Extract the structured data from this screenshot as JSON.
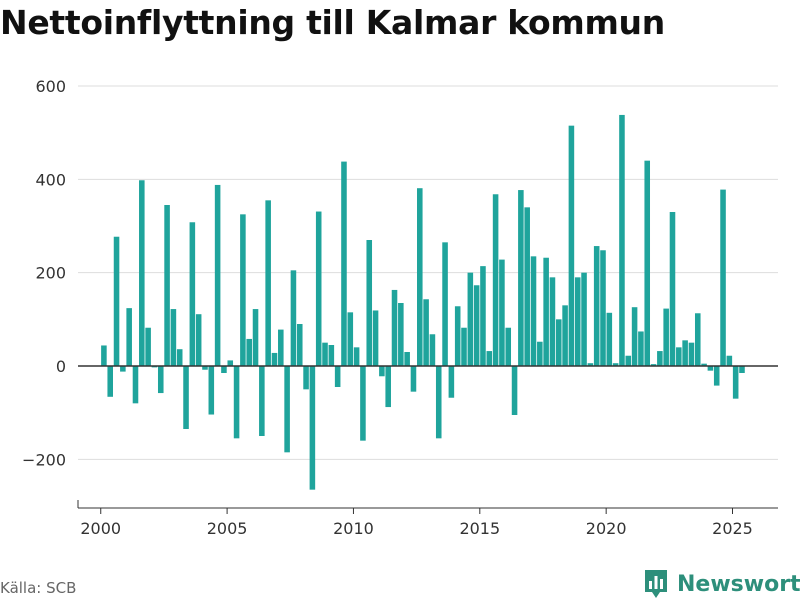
{
  "title": "Nettoinflyttning till Kalmar kommun",
  "source": "Källa: SCB",
  "brand": "Newsworthy",
  "colors": {
    "bar": "#1fa49c",
    "grid": "#dddddd",
    "zero": "#333333",
    "axis": "#333333",
    "text": "#333333",
    "brand": "#2d8f7b"
  },
  "chart_data": {
    "type": "bar",
    "title": "Nettoinflyttning till Kalmar kommun",
    "xlabel": "",
    "ylabel": "",
    "xlim": [
      1999.1,
      2026.8
    ],
    "ylim": [
      -300,
      600
    ],
    "yticks": [
      600,
      400,
      200,
      0,
      -200
    ],
    "ytick_labels": [
      "600",
      "400",
      "200",
      "0",
      "−200"
    ],
    "xticks": [
      2000,
      2005,
      2010,
      2015,
      2020,
      2025
    ],
    "xtick_labels": [
      "2000",
      "2005",
      "2010",
      "2015",
      "2020",
      "2025"
    ],
    "grid": true,
    "legend": "none",
    "bar_width_years": 0.22,
    "series": [
      {
        "x": [
          2000.125,
          2000.375,
          2000.625,
          2000.875,
          2001.125,
          2001.375,
          2001.625,
          2001.875,
          2002.125,
          2002.375,
          2002.625,
          2002.875,
          2003.125,
          2003.375,
          2003.625,
          2003.875,
          2004.125,
          2004.375,
          2004.625,
          2004.875,
          2005.125,
          2005.375,
          2005.625,
          2005.875,
          2006.125,
          2006.375,
          2006.625,
          2006.875,
          2007.125,
          2007.375,
          2007.625,
          2007.875,
          2008.125,
          2008.375,
          2008.625,
          2008.875,
          2009.125,
          2009.375,
          2009.625,
          2009.875,
          2010.125,
          2010.375,
          2010.625,
          2010.875,
          2011.125,
          2011.375,
          2011.625,
          2011.875,
          2012.125,
          2012.375,
          2012.625,
          2012.875,
          2013.125,
          2013.375,
          2013.625,
          2013.875,
          2014.125,
          2014.375,
          2014.625,
          2014.875,
          2015.125,
          2015.375,
          2015.625,
          2015.875,
          2016.125,
          2016.375,
          2016.625,
          2016.875,
          2017.125,
          2017.375,
          2017.625,
          2017.875,
          2018.125,
          2018.375,
          2018.625,
          2018.875,
          2019.125,
          2019.375,
          2019.625,
          2019.875,
          2020.125,
          2020.375,
          2020.625,
          2020.875,
          2021.125,
          2021.375,
          2021.625,
          2021.875,
          2022.125,
          2022.375,
          2022.625,
          2022.875,
          2023.125,
          2023.375,
          2023.625,
          2023.875,
          2024.125,
          2024.375,
          2024.625,
          2024.875,
          2025.125,
          2025.375
        ],
        "values": [
          44,
          -66,
          277,
          -12,
          124,
          -80,
          398,
          82,
          -3,
          -58,
          345,
          122,
          36,
          -135,
          308,
          111,
          -8,
          -104,
          388,
          -15,
          12,
          -155,
          325,
          58,
          122,
          -150,
          355,
          28,
          78,
          -185,
          205,
          90,
          -50,
          -265,
          331,
          50,
          45,
          -45,
          438,
          115,
          40,
          -160,
          270,
          119,
          -22,
          -88,
          163,
          135,
          30,
          -55,
          381,
          143,
          68,
          -155,
          265,
          -68,
          128,
          82,
          200,
          173,
          214,
          32,
          368,
          228,
          82,
          -105,
          377,
          340,
          235,
          52,
          232,
          190,
          100,
          130,
          515,
          190,
          200,
          6,
          257,
          248,
          114,
          6,
          538,
          22,
          126,
          74,
          440,
          4,
          32,
          123,
          330,
          40,
          55,
          50,
          113,
          5,
          -10,
          -42,
          378,
          22,
          -70,
          -15
        ]
      }
    ]
  }
}
